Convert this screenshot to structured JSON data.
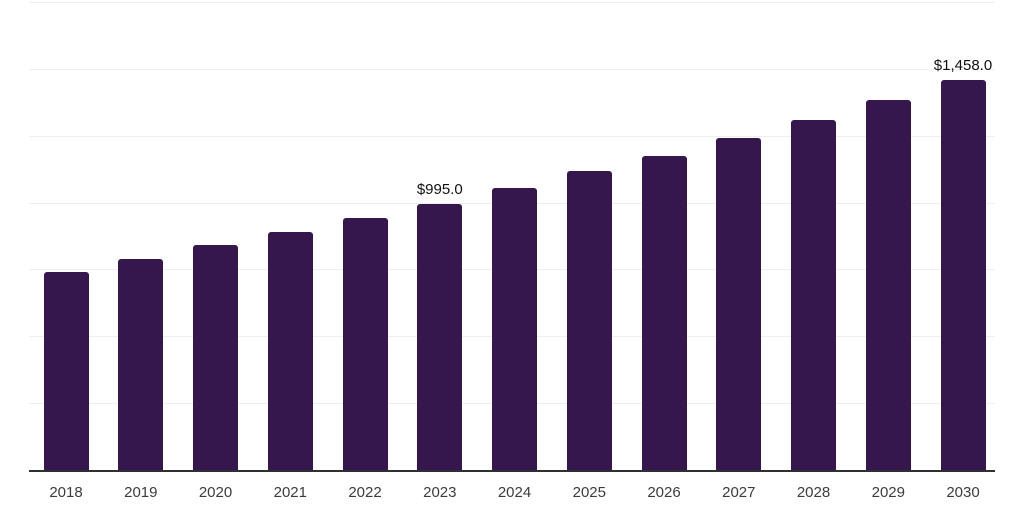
{
  "chart_data": {
    "type": "bar",
    "title": "",
    "xlabel": "",
    "ylabel": "",
    "categories": [
      "2018",
      "2019",
      "2020",
      "2021",
      "2022",
      "2023",
      "2024",
      "2025",
      "2026",
      "2027",
      "2028",
      "2029",
      "2030"
    ],
    "values": [
      740,
      788,
      840,
      889,
      941,
      995,
      1053,
      1119,
      1173,
      1240,
      1308,
      1384,
      1458
    ],
    "annotations": [
      {
        "index": 5,
        "text": "$995.0"
      },
      {
        "index": 12,
        "text": "$1,458.0"
      }
    ],
    "ylim": [
      0,
      1750
    ],
    "grid": {
      "visible": true,
      "interval": 250,
      "axis": "y"
    },
    "legend": {
      "visible": false
    },
    "colors": {
      "bar": "#35164D",
      "gridline": "#EFEFEF",
      "axis_line": "#303030",
      "value_label": "#111111",
      "tick_label": "#3C3C3C",
      "background": "#FFFFFF"
    }
  }
}
